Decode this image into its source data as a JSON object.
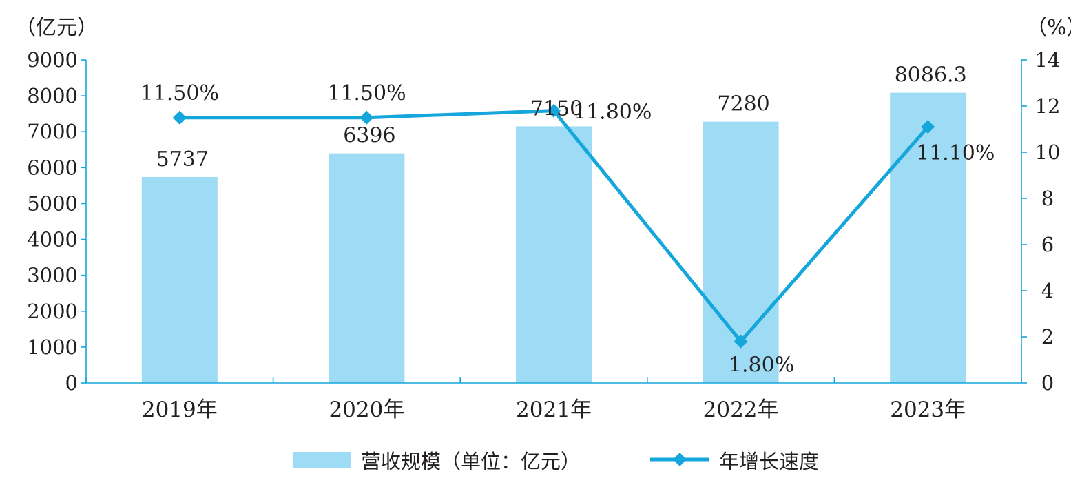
{
  "chart_data": {
    "type": "bar",
    "categories": [
      "2019年",
      "2020年",
      "2021年",
      "2022年",
      "2023年"
    ],
    "left_unit": "（亿元）",
    "right_unit": "（%）",
    "left_axis": {
      "ylim": [
        0,
        9000
      ],
      "ticks": [
        "0",
        "1000",
        "2000",
        "3000",
        "4000",
        "5000",
        "6000",
        "7000",
        "8000",
        "9000"
      ]
    },
    "right_axis": {
      "ylim": [
        0,
        14
      ],
      "ticks": [
        "0",
        "2",
        "4",
        "6",
        "8",
        "10",
        "12",
        "14"
      ]
    },
    "series": [
      {
        "name": "营收规模（单位：亿元）",
        "type": "bar",
        "axis": "left",
        "color": "#9ddcf4",
        "values": [
          5737,
          6396,
          7150,
          7280,
          8086.3
        ],
        "labels": [
          "5737",
          "6396",
          "7150",
          "7280",
          "8086.3"
        ]
      },
      {
        "name": "年增长速度",
        "type": "line",
        "axis": "right",
        "color": "#15a6db",
        "marker": "diamond",
        "values": [
          11.5,
          11.5,
          11.8,
          1.8,
          11.1
        ],
        "labels": [
          "11.50%",
          "11.50%",
          "11.80%",
          "1.80%",
          "11.10%"
        ]
      }
    ],
    "legend": "bottom-center",
    "grid": false
  }
}
